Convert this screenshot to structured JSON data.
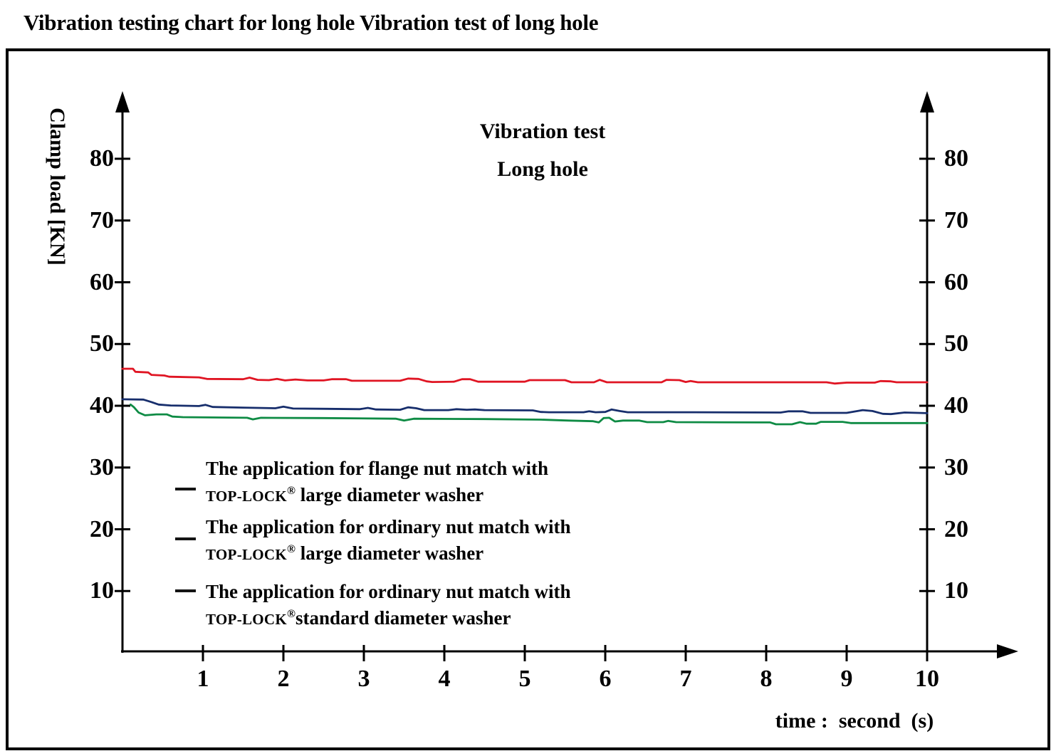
{
  "page_title": "Vibration testing chart for long hole Vibration test of long hole",
  "chart_data": {
    "type": "line",
    "title_lines": [
      "Vibration test",
      "Long hole"
    ],
    "ylabel": "Clamp load [KN]",
    "xlabel": "time :  second  (s)",
    "x_range": [
      0,
      10
    ],
    "y_range": [
      0,
      88
    ],
    "x_ticks": [
      1,
      2,
      3,
      4,
      5,
      6,
      7,
      8,
      9,
      10
    ],
    "y_ticks": [
      10,
      20,
      30,
      40,
      50,
      60,
      70,
      80
    ],
    "y_axis_sides": [
      "left",
      "right"
    ],
    "grid": false,
    "legend_position": "inside-lower-left",
    "series": [
      {
        "name": "The application for flange nut match with TOP-LOCK® large diameter washer",
        "color": "#e01523",
        "points": [
          [
            0,
            46.0
          ],
          [
            0.13,
            46.0
          ],
          [
            0.16,
            45.5
          ],
          [
            0.32,
            45.4
          ],
          [
            0.36,
            45.0
          ],
          [
            0.52,
            44.9
          ],
          [
            0.58,
            44.7
          ],
          [
            0.95,
            44.6
          ],
          [
            1.05,
            44.35
          ],
          [
            1.5,
            44.3
          ],
          [
            1.58,
            44.55
          ],
          [
            1.68,
            44.2
          ],
          [
            1.82,
            44.15
          ],
          [
            1.92,
            44.35
          ],
          [
            2.02,
            44.1
          ],
          [
            2.15,
            44.25
          ],
          [
            2.3,
            44.1
          ],
          [
            2.5,
            44.1
          ],
          [
            2.6,
            44.3
          ],
          [
            2.78,
            44.3
          ],
          [
            2.85,
            44.05
          ],
          [
            3.45,
            44.05
          ],
          [
            3.55,
            44.4
          ],
          [
            3.68,
            44.35
          ],
          [
            3.78,
            43.95
          ],
          [
            3.85,
            43.85
          ],
          [
            4.12,
            43.9
          ],
          [
            4.22,
            44.3
          ],
          [
            4.32,
            44.3
          ],
          [
            4.42,
            43.9
          ],
          [
            5.0,
            43.9
          ],
          [
            5.06,
            44.15
          ],
          [
            5.5,
            44.15
          ],
          [
            5.58,
            43.8
          ],
          [
            5.86,
            43.8
          ],
          [
            5.93,
            44.2
          ],
          [
            6.02,
            43.8
          ],
          [
            6.7,
            43.8
          ],
          [
            6.76,
            44.2
          ],
          [
            6.92,
            44.15
          ],
          [
            7.0,
            43.85
          ],
          [
            7.06,
            44.0
          ],
          [
            7.15,
            43.8
          ],
          [
            8.75,
            43.8
          ],
          [
            8.85,
            43.6
          ],
          [
            9.0,
            43.75
          ],
          [
            9.35,
            43.75
          ],
          [
            9.42,
            44.0
          ],
          [
            9.55,
            43.95
          ],
          [
            9.62,
            43.8
          ],
          [
            10,
            43.8
          ]
        ]
      },
      {
        "name": "The application for ordinary nut match with TOP-LOCK® large diameter washer",
        "color": "#172e6c",
        "points": [
          [
            0,
            41.05
          ],
          [
            0.26,
            41.0
          ],
          [
            0.36,
            40.6
          ],
          [
            0.45,
            40.2
          ],
          [
            0.6,
            40.05
          ],
          [
            0.95,
            39.95
          ],
          [
            1.03,
            40.15
          ],
          [
            1.12,
            39.8
          ],
          [
            1.5,
            39.7
          ],
          [
            1.9,
            39.6
          ],
          [
            2.0,
            39.85
          ],
          [
            2.12,
            39.55
          ],
          [
            2.55,
            39.5
          ],
          [
            2.95,
            39.45
          ],
          [
            3.05,
            39.65
          ],
          [
            3.15,
            39.4
          ],
          [
            3.45,
            39.35
          ],
          [
            3.55,
            39.75
          ],
          [
            3.65,
            39.6
          ],
          [
            3.75,
            39.3
          ],
          [
            4.05,
            39.3
          ],
          [
            4.15,
            39.45
          ],
          [
            4.28,
            39.35
          ],
          [
            4.38,
            39.4
          ],
          [
            4.5,
            39.3
          ],
          [
            5.1,
            39.25
          ],
          [
            5.2,
            39.0
          ],
          [
            5.3,
            38.95
          ],
          [
            5.73,
            38.95
          ],
          [
            5.8,
            39.1
          ],
          [
            5.88,
            38.95
          ],
          [
            6.0,
            39.0
          ],
          [
            6.08,
            39.4
          ],
          [
            6.18,
            39.15
          ],
          [
            6.28,
            38.95
          ],
          [
            7.1,
            38.95
          ],
          [
            8.18,
            38.9
          ],
          [
            8.28,
            39.1
          ],
          [
            8.45,
            39.1
          ],
          [
            8.55,
            38.85
          ],
          [
            9.0,
            38.85
          ],
          [
            9.2,
            39.3
          ],
          [
            9.32,
            39.15
          ],
          [
            9.45,
            38.7
          ],
          [
            9.55,
            38.65
          ],
          [
            9.72,
            38.9
          ],
          [
            10,
            38.8
          ]
        ]
      },
      {
        "name": "The application for ordinary nut match with TOP-LOCK® standard diameter washer",
        "color": "#0e8b44",
        "points": [
          [
            0.1,
            40.2
          ],
          [
            0.14,
            39.8
          ],
          [
            0.2,
            38.9
          ],
          [
            0.28,
            38.45
          ],
          [
            0.42,
            38.6
          ],
          [
            0.55,
            38.6
          ],
          [
            0.62,
            38.25
          ],
          [
            0.75,
            38.15
          ],
          [
            1.55,
            38.05
          ],
          [
            1.62,
            37.8
          ],
          [
            1.72,
            38.05
          ],
          [
            2.5,
            38.0
          ],
          [
            3.4,
            37.9
          ],
          [
            3.5,
            37.6
          ],
          [
            3.62,
            37.9
          ],
          [
            4.5,
            37.85
          ],
          [
            5.2,
            37.75
          ],
          [
            5.55,
            37.6
          ],
          [
            5.85,
            37.5
          ],
          [
            5.92,
            37.3
          ],
          [
            5.98,
            38.0
          ],
          [
            6.05,
            38.05
          ],
          [
            6.12,
            37.45
          ],
          [
            6.22,
            37.6
          ],
          [
            6.42,
            37.6
          ],
          [
            6.52,
            37.35
          ],
          [
            6.72,
            37.35
          ],
          [
            6.78,
            37.55
          ],
          [
            6.88,
            37.35
          ],
          [
            7.9,
            37.3
          ],
          [
            8.05,
            37.3
          ],
          [
            8.12,
            37.0
          ],
          [
            8.32,
            37.0
          ],
          [
            8.42,
            37.35
          ],
          [
            8.5,
            37.1
          ],
          [
            8.62,
            37.1
          ],
          [
            8.68,
            37.4
          ],
          [
            8.95,
            37.4
          ],
          [
            9.05,
            37.2
          ],
          [
            10,
            37.2
          ]
        ]
      }
    ],
    "legend": {
      "marker_color": "#141414",
      "entries": [
        {
          "line1": "The application for flange nut match with",
          "brand": "TOP-LOCK",
          "reg": "®",
          "line2_rest": " large diameter washer"
        },
        {
          "line1": "The application for ordinary nut match with",
          "brand": "TOP-LOCK",
          "reg": "®",
          "line2_rest": " large diameter washer"
        },
        {
          "line1": "The application for ordinary nut match with",
          "brand": "TOP-LOCK",
          "reg": "®",
          "line2_rest": "standard diameter washer"
        }
      ]
    }
  }
}
